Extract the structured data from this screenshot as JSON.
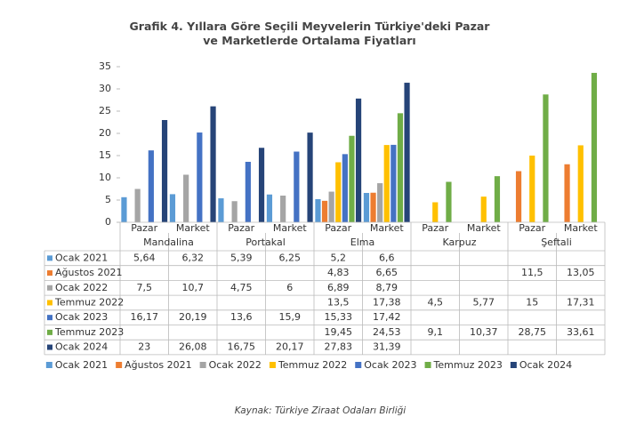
{
  "chart_data": {
    "type": "bar",
    "title": "Grafik 4. Yıllara Göre Seçili Meyvelerin Türkiye'deki Pazar ve Marketlerde Ortalama Fiyatları",
    "categories": [
      "Pazar",
      "Market",
      "Pazar",
      "Market",
      "Pazar",
      "Market",
      "Pazar",
      "Market",
      "Pazar",
      "Market"
    ],
    "groups": [
      "Mandalina",
      "Portakal",
      "Elma",
      "Karpuz",
      "Şeftali"
    ],
    "series": [
      {
        "name": "Ocak 2021",
        "color": "#5b9bd5",
        "values": [
          5.64,
          6.32,
          5.39,
          6.25,
          5.2,
          6.6,
          null,
          null,
          null,
          null
        ],
        "value_labels": [
          "5,64",
          "6,32",
          "5,39",
          "6,25",
          "5,2",
          "6,6",
          null,
          null,
          null,
          null
        ]
      },
      {
        "name": "Ağustos 2021",
        "color": "#ed7d31",
        "values": [
          null,
          null,
          null,
          null,
          4.83,
          6.65,
          null,
          null,
          11.5,
          13.05
        ],
        "value_labels": [
          null,
          null,
          null,
          null,
          "4,83",
          "6,65",
          null,
          null,
          "11,5",
          "13,05"
        ]
      },
      {
        "name": "Ocak 2022",
        "color": "#a5a5a5",
        "values": [
          7.5,
          10.7,
          4.75,
          6,
          6.89,
          8.79,
          null,
          null,
          null,
          null
        ],
        "value_labels": [
          "7,5",
          "10,7",
          "4,75",
          "6",
          "6,89",
          "8,79",
          null,
          null,
          null,
          null
        ]
      },
      {
        "name": "Temmuz 2022",
        "color": "#ffc000",
        "values": [
          null,
          null,
          null,
          null,
          13.5,
          17.38,
          4.5,
          5.77,
          15,
          17.31
        ],
        "value_labels": [
          null,
          null,
          null,
          null,
          "13,5",
          "17,38",
          "4,5",
          "5,77",
          "15",
          "17,31"
        ]
      },
      {
        "name": "Ocak 2023",
        "color": "#4472c4",
        "values": [
          16.17,
          20.19,
          13.6,
          15.9,
          15.33,
          17.42,
          null,
          null,
          null,
          null
        ],
        "value_labels": [
          "16,17",
          "20,19",
          "13,6",
          "15,9",
          "15,33",
          "17,42",
          null,
          null,
          null,
          null
        ]
      },
      {
        "name": "Temmuz 2023",
        "color": "#70ad47",
        "values": [
          null,
          null,
          null,
          null,
          19.45,
          24.53,
          9.1,
          10.37,
          28.75,
          33.61
        ],
        "value_labels": [
          null,
          null,
          null,
          null,
          "19,45",
          "24,53",
          "9,1",
          "10,37",
          "28,75",
          "33,61"
        ]
      },
      {
        "name": "Ocak 2024",
        "color": "#264478",
        "values": [
          23,
          26.08,
          16.75,
          20.17,
          27.83,
          31.39,
          null,
          null,
          null,
          null
        ],
        "value_labels": [
          "23",
          "26,08",
          "16,75",
          "20,17",
          "27,83",
          "31,39",
          null,
          null,
          null,
          null
        ]
      }
    ],
    "ylim": [
      0,
      35
    ],
    "yticks": [
      0,
      5,
      10,
      15,
      20,
      25,
      30,
      35
    ],
    "source": "Kaynak: Türkiye Ziraat Odaları Birliği"
  }
}
